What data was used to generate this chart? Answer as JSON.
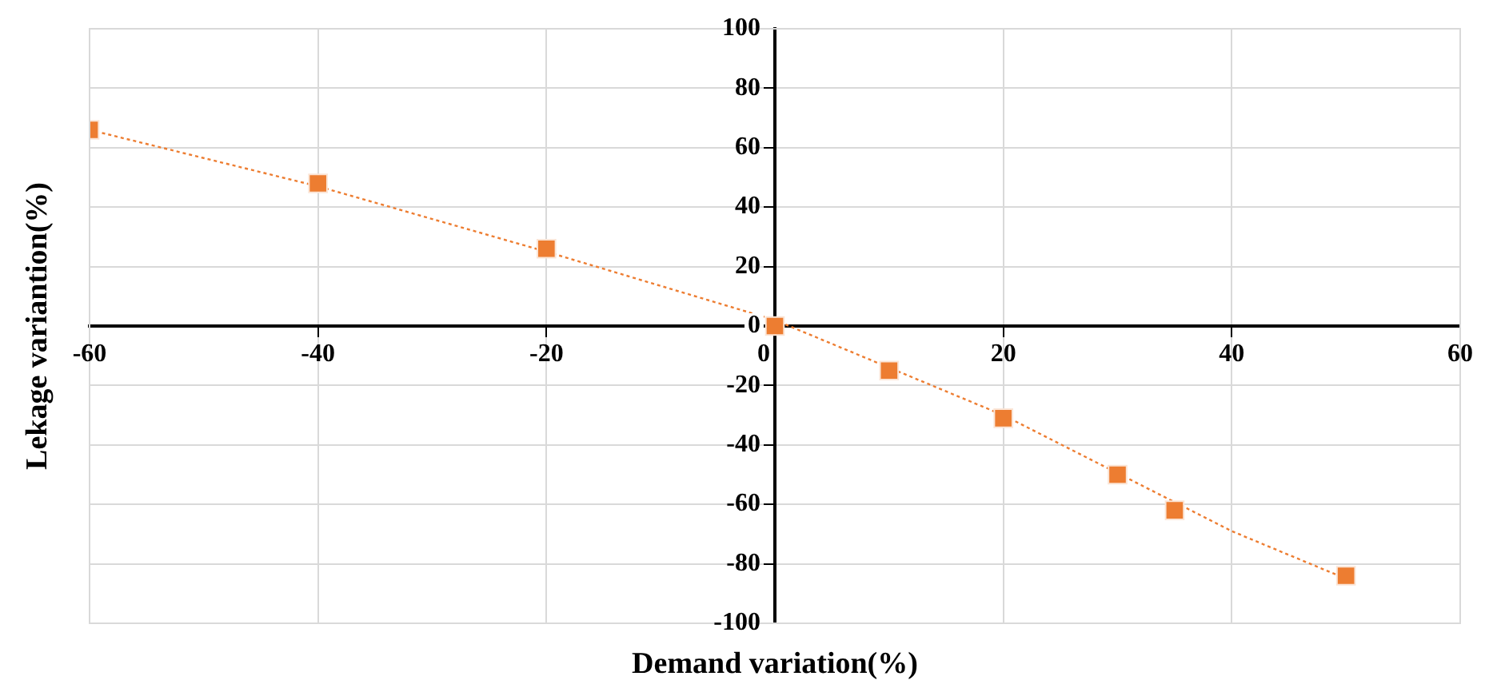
{
  "chart_data": {
    "type": "scatter",
    "xlabel": "Demand variation(%)",
    "ylabel": "Lekage variantion(%)",
    "xlim": [
      -60,
      60
    ],
    "xticks": [
      -60,
      -40,
      -20,
      0,
      20,
      40,
      60
    ],
    "ylim": [
      -100,
      100
    ],
    "yticks": [
      -100,
      -80,
      -60,
      -40,
      -20,
      0,
      20,
      40,
      60,
      80,
      100
    ],
    "grid": true,
    "marker": "square",
    "legend": false,
    "series": [
      {
        "color": "#ed7d31",
        "x": [
          -60,
          -40,
          -20,
          0,
          10,
          20,
          30,
          35,
          50
        ],
        "values": [
          66,
          48,
          26,
          0,
          -15,
          -31,
          -50,
          -62,
          -84
        ]
      },
      {
        "type": "line",
        "color": "#ed7d31",
        "line_style": "dotted",
        "marker": "none",
        "x": [
          -60,
          -40,
          -20,
          0,
          20,
          40,
          50
        ],
        "values": [
          66,
          47,
          25,
          2,
          -30,
          -69,
          -85
        ]
      }
    ]
  }
}
